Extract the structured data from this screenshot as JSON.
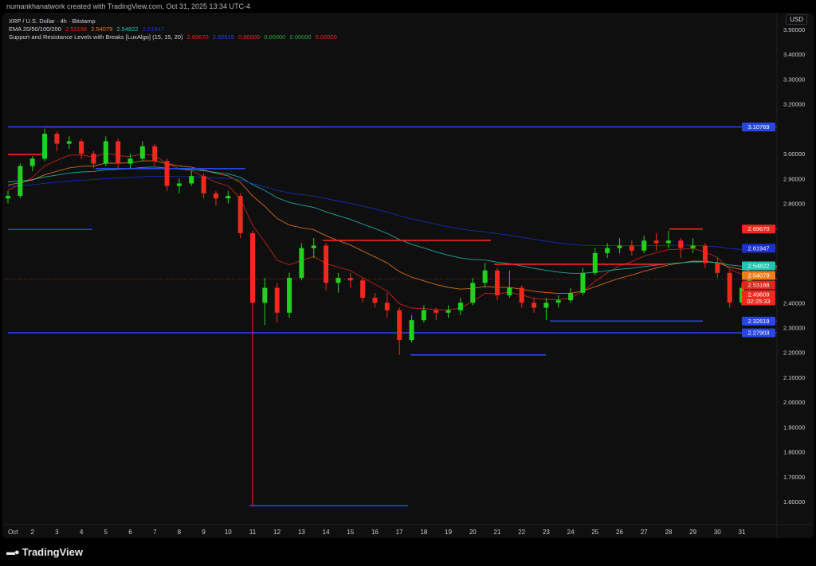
{
  "credit": "numankhanatwork created with TradingView.com, Oct 31, 2025 13:34 UTC-4",
  "legend": {
    "symbol": "XRP / U.S. Dollar · 4h · Bitstamp",
    "ema_label": "EMA 20/50/100/200",
    "ema_values": [
      "2.53188",
      "2.54079",
      "2.54822",
      "2.61947"
    ],
    "sr_label": "Support and Resistance Levels with Breaks [LuxAlgo] (15, 15, 20)",
    "sr_values": [
      "2.69670",
      "2.32619",
      "0.00000",
      "0.00000",
      "0.00000",
      "0.00000"
    ]
  },
  "currency": "USD",
  "branding": "TradingView",
  "colors": {
    "up": "#22d11e",
    "down": "#f0281e",
    "resistance": "#f0281e",
    "support": "#2846e6",
    "ema20": "#d9291c",
    "ema50": "#f07d1a",
    "ema100": "#1fc4b6",
    "ema200": "#1c2fd0",
    "background": "#0f0f0f"
  },
  "chart_data": {
    "type": "candlestick",
    "ylim": [
      1.55,
      3.53
    ],
    "xlim": [
      1,
      32.2
    ],
    "y_ticks": [
      "3.50000",
      "3.40000",
      "3.30000",
      "3.20000",
      "3.00000",
      "2.90000",
      "2.80000",
      "2.40000",
      "2.30000",
      "2.20000",
      "2.10000",
      "2.00000",
      "1.90000",
      "1.80000",
      "1.70000",
      "1.60000"
    ],
    "x_ticks": [
      {
        "d": 1,
        "label": "Oct"
      },
      {
        "d": 2,
        "label": "2"
      },
      {
        "d": 3,
        "label": "3"
      },
      {
        "d": 4,
        "label": "4"
      },
      {
        "d": 5,
        "label": "5"
      },
      {
        "d": 6,
        "label": "6"
      },
      {
        "d": 7,
        "label": "7"
      },
      {
        "d": 8,
        "label": "8"
      },
      {
        "d": 9,
        "label": "9"
      },
      {
        "d": 10,
        "label": "10"
      },
      {
        "d": 11,
        "label": "11"
      },
      {
        "d": 12,
        "label": "12"
      },
      {
        "d": 13,
        "label": "13"
      },
      {
        "d": 14,
        "label": "14"
      },
      {
        "d": 15,
        "label": "15"
      },
      {
        "d": 16,
        "label": "16"
      },
      {
        "d": 17,
        "label": "17"
      },
      {
        "d": 18,
        "label": "18"
      },
      {
        "d": 19,
        "label": "19"
      },
      {
        "d": 20,
        "label": "20"
      },
      {
        "d": 21,
        "label": "21"
      },
      {
        "d": 22,
        "label": "22"
      },
      {
        "d": 23,
        "label": "23"
      },
      {
        "d": 24,
        "label": "24"
      },
      {
        "d": 25,
        "label": "25"
      },
      {
        "d": 26,
        "label": "26"
      },
      {
        "d": 27,
        "label": "27"
      },
      {
        "d": 28,
        "label": "28"
      },
      {
        "d": 29,
        "label": "29"
      },
      {
        "d": 30,
        "label": "30"
      },
      {
        "d": 31,
        "label": "31"
      }
    ],
    "candles_day_ohlc": [
      [
        1.0,
        2.82,
        2.85,
        2.8,
        2.83
      ],
      [
        1.5,
        2.83,
        2.96,
        2.82,
        2.95
      ],
      [
        2.0,
        2.95,
        2.99,
        2.93,
        2.98
      ],
      [
        2.5,
        2.98,
        3.1,
        2.97,
        3.08
      ],
      [
        3.0,
        3.08,
        3.09,
        3.01,
        3.04
      ],
      [
        3.5,
        3.04,
        3.07,
        3.02,
        3.05
      ],
      [
        4.0,
        3.05,
        3.06,
        2.98,
        3.0
      ],
      [
        4.5,
        3.0,
        3.01,
        2.94,
        2.96
      ],
      [
        5.0,
        2.96,
        3.07,
        2.95,
        3.05
      ],
      [
        5.5,
        3.05,
        3.06,
        2.94,
        2.96
      ],
      [
        6.0,
        2.96,
        3.0,
        2.94,
        2.98
      ],
      [
        6.5,
        2.98,
        3.05,
        2.97,
        3.03
      ],
      [
        7.0,
        3.03,
        3.04,
        2.95,
        2.97
      ],
      [
        7.5,
        2.97,
        2.98,
        2.85,
        2.87
      ],
      [
        8.0,
        2.87,
        2.9,
        2.84,
        2.88
      ],
      [
        8.5,
        2.88,
        2.93,
        2.87,
        2.91
      ],
      [
        9.0,
        2.91,
        2.92,
        2.82,
        2.84
      ],
      [
        9.5,
        2.84,
        2.85,
        2.79,
        2.82
      ],
      [
        10.0,
        2.82,
        2.85,
        2.8,
        2.83
      ],
      [
        10.5,
        2.83,
        2.84,
        2.66,
        2.68
      ],
      [
        11.0,
        2.68,
        2.69,
        1.58,
        2.4
      ],
      [
        11.5,
        2.4,
        2.5,
        2.31,
        2.46
      ],
      [
        12.0,
        2.46,
        2.48,
        2.32,
        2.36
      ],
      [
        12.5,
        2.36,
        2.52,
        2.34,
        2.5
      ],
      [
        13.0,
        2.5,
        2.64,
        2.49,
        2.62
      ],
      [
        13.5,
        2.62,
        2.66,
        2.58,
        2.63
      ],
      [
        14.0,
        2.63,
        2.64,
        2.45,
        2.48
      ],
      [
        14.5,
        2.48,
        2.52,
        2.44,
        2.5
      ],
      [
        15.0,
        2.5,
        2.52,
        2.46,
        2.49
      ],
      [
        15.5,
        2.49,
        2.5,
        2.4,
        2.42
      ],
      [
        16.0,
        2.42,
        2.44,
        2.38,
        2.4
      ],
      [
        16.5,
        2.4,
        2.44,
        2.34,
        2.37
      ],
      [
        17.0,
        2.37,
        2.38,
        2.19,
        2.25
      ],
      [
        17.5,
        2.25,
        2.35,
        2.24,
        2.33
      ],
      [
        18.0,
        2.33,
        2.39,
        2.32,
        2.37
      ],
      [
        18.5,
        2.37,
        2.38,
        2.33,
        2.36
      ],
      [
        19.0,
        2.36,
        2.39,
        2.34,
        2.37
      ],
      [
        19.5,
        2.37,
        2.42,
        2.35,
        2.4
      ],
      [
        20.0,
        2.4,
        2.5,
        2.39,
        2.48
      ],
      [
        20.5,
        2.48,
        2.56,
        2.46,
        2.53
      ],
      [
        21.0,
        2.53,
        2.54,
        2.41,
        2.43
      ],
      [
        21.5,
        2.43,
        2.53,
        2.42,
        2.46
      ],
      [
        22.0,
        2.46,
        2.47,
        2.38,
        2.4
      ],
      [
        22.5,
        2.4,
        2.42,
        2.36,
        2.38
      ],
      [
        23.0,
        2.38,
        2.42,
        2.33,
        2.4
      ],
      [
        23.5,
        2.4,
        2.43,
        2.38,
        2.41
      ],
      [
        24.0,
        2.41,
        2.46,
        2.4,
        2.44
      ],
      [
        24.5,
        2.44,
        2.54,
        2.43,
        2.52
      ],
      [
        25.0,
        2.52,
        2.62,
        2.51,
        2.6
      ],
      [
        25.5,
        2.6,
        2.64,
        2.58,
        2.62
      ],
      [
        26.0,
        2.62,
        2.66,
        2.6,
        2.63
      ],
      [
        26.5,
        2.63,
        2.65,
        2.59,
        2.61
      ],
      [
        27.0,
        2.61,
        2.67,
        2.6,
        2.65
      ],
      [
        27.5,
        2.65,
        2.68,
        2.61,
        2.64
      ],
      [
        28.0,
        2.64,
        2.69,
        2.62,
        2.65
      ],
      [
        28.5,
        2.65,
        2.66,
        2.58,
        2.62
      ],
      [
        29.0,
        2.62,
        2.66,
        2.6,
        2.63
      ],
      [
        29.5,
        2.63,
        2.64,
        2.54,
        2.56
      ],
      [
        30.0,
        2.56,
        2.58,
        2.5,
        2.52
      ],
      [
        30.5,
        2.52,
        2.53,
        2.38,
        2.4
      ],
      [
        31.0,
        2.4,
        2.48,
        2.39,
        2.46
      ],
      [
        31.3,
        2.46,
        2.51,
        2.45,
        2.496
      ]
    ],
    "sr_levels": [
      {
        "kind": "resistance",
        "price": 2.997,
        "from": 1.0,
        "to": 2.47
      },
      {
        "kind": "resistance",
        "price": 3.10769,
        "from": 2.47,
        "to": 13.8
      },
      {
        "kind": "support",
        "price": 3.10769,
        "from": 1.0,
        "to": 32.2
      },
      {
        "kind": "support",
        "price": 2.94,
        "from": 4.58,
        "to": 10.7
      },
      {
        "kind": "support",
        "price": 2.695,
        "from": 1.0,
        "to": 4.45
      },
      {
        "kind": "resistance",
        "price": 2.651,
        "from": 13.87,
        "to": 20.74
      },
      {
        "kind": "resistance",
        "price": 2.555,
        "from": 20.87,
        "to": 27.87
      },
      {
        "kind": "resistance",
        "price": 2.6967,
        "from": 28.04,
        "to": 29.4
      },
      {
        "kind": "support",
        "price": 2.32619,
        "from": 23.15,
        "to": 29.4
      },
      {
        "kind": "support",
        "price": 2.27903,
        "from": 1.0,
        "to": 32.2
      },
      {
        "kind": "support",
        "price": 2.19,
        "from": 17.45,
        "to": 22.99
      },
      {
        "kind": "support",
        "price": 1.583,
        "from": 10.87,
        "to": 17.35
      }
    ],
    "price_labels": [
      {
        "price": 3.10769,
        "text": "3.10769",
        "color": "#2846e6"
      },
      {
        "price": 2.6967,
        "text": "2.69670",
        "color": "#f0281e"
      },
      {
        "price": 2.61947,
        "text": "2.61947",
        "color": "#1c2fd0"
      },
      {
        "price": 2.54822,
        "text": "2.54822",
        "color": "#1fc4b6"
      },
      {
        "price": 2.54079,
        "text": "2.54079",
        "color": "#f07d1a"
      },
      {
        "price": 2.53188,
        "text": "2.53188",
        "color": "#d9291c"
      },
      {
        "price": 2.49609,
        "text": "2.49609",
        "sub": "02:25:33",
        "color": "#f0281e"
      },
      {
        "price": 2.32619,
        "text": "2.32619",
        "color": "#2846e6"
      },
      {
        "price": 2.27903,
        "text": "2.27903",
        "color": "#2846e6"
      }
    ],
    "last_price": 2.49609
  }
}
